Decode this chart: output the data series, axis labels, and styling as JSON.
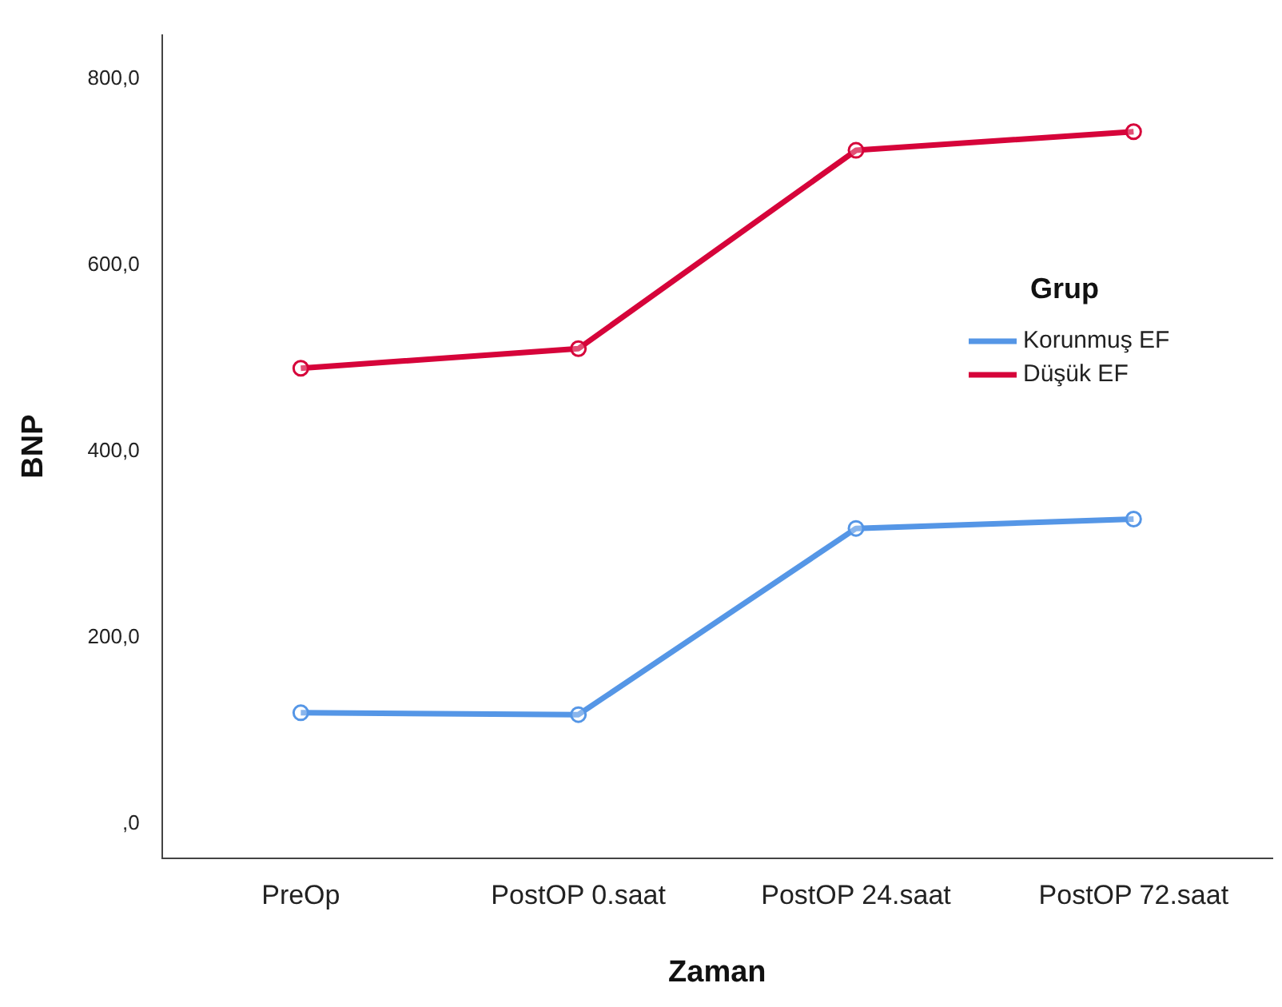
{
  "chart_data": {
    "type": "line",
    "xlabel": "Zaman",
    "ylabel": "BNP",
    "legend_title": "Grup",
    "legend": "right",
    "marker": "circle",
    "line_style": "solid",
    "grid": false,
    "categories": [
      "PreOp",
      "PostOP 0.saat",
      "PostOP 24.saat",
      "PostOP 72.saat"
    ],
    "ylim": [
      -37,
      847
    ],
    "yticks": [
      {
        "value": 0,
        "label": ",0"
      },
      {
        "value": 200,
        "label": "200,0"
      },
      {
        "value": 400,
        "label": "400,0"
      },
      {
        "value": 600,
        "label": "600,0"
      },
      {
        "value": 800,
        "label": "800,0"
      }
    ],
    "series": [
      {
        "name": "Korunmuş EF",
        "color": "#5596e6",
        "values": [
          119,
          117,
          317,
          327
        ]
      },
      {
        "name": "Düşük EF",
        "color": "#d6043a",
        "values": [
          489,
          510,
          723,
          743
        ]
      }
    ]
  }
}
